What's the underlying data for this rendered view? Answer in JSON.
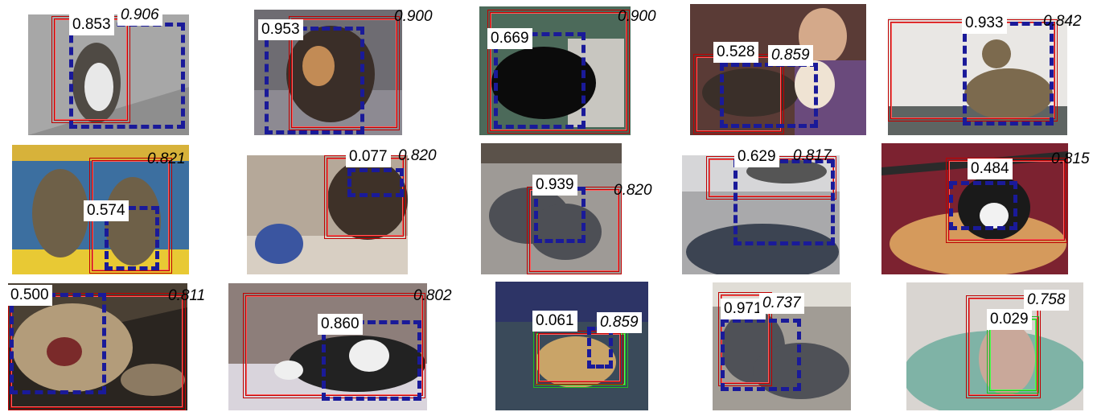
{
  "grid": [
    {
      "id": "r1c1",
      "score": "0.853",
      "iou": "0.906",
      "bg": "#9a9a9a",
      "fg": "#4f4a44"
    },
    {
      "id": "r1c2",
      "score": "0.953",
      "iou": "0.900",
      "bg": "#6e6c72",
      "fg": "#3a2e28"
    },
    {
      "id": "r1c3",
      "score": "0.669",
      "iou": "0.900",
      "bg": "#c8c6c0",
      "fg": "#0b0b0b"
    },
    {
      "id": "r1c4",
      "score": "0.528",
      "iou": "0.859",
      "bg": "#5a3b36",
      "fg": "#3a2f29"
    },
    {
      "id": "r1c5",
      "score": "0.933",
      "iou": "0.842",
      "bg": "#e9e7e4",
      "fg": "#7c6a4e"
    },
    {
      "id": "r2c1",
      "score": "0.574",
      "iou": "0.821",
      "bg": "#3c6fa0",
      "fg": "#6e6048"
    },
    {
      "id": "r2c2",
      "score": "0.077",
      "iou": "0.820",
      "bg": "#b5a899",
      "fg": "#3e3128"
    },
    {
      "id": "r2c3",
      "score": "0.939",
      "iou": "0.820",
      "bg": "#9e9a96",
      "fg": "#4d4f55"
    },
    {
      "id": "r2c4",
      "score": "0.629",
      "iou": "0.817",
      "bg": "#a9a9ab",
      "fg": "#3c4452"
    },
    {
      "id": "r2c5",
      "score": "0.484",
      "iou": "0.815",
      "bg": "#7c2230",
      "fg": "#d59a5c"
    },
    {
      "id": "r3c1",
      "score": "0.500",
      "iou": "0.811",
      "bg": "#2a2520",
      "fg": "#b39c7a"
    },
    {
      "id": "r3c2",
      "score": "0.860",
      "iou": "0.802",
      "bg": "#8d7e7a",
      "fg": "#222222"
    },
    {
      "id": "r3c3",
      "score": "0.061",
      "iou": "0.859",
      "bg": "#2d3466",
      "fg": "#c9a468"
    },
    {
      "id": "r3c4",
      "score": "0.971",
      "iou": "0.737",
      "bg": "#a19c95",
      "fg": "#4f5157"
    },
    {
      "id": "r3c5",
      "score": "0.029",
      "iou": "0.758",
      "bg": "#d9d5d1",
      "fg": "#7fb3a6"
    }
  ]
}
